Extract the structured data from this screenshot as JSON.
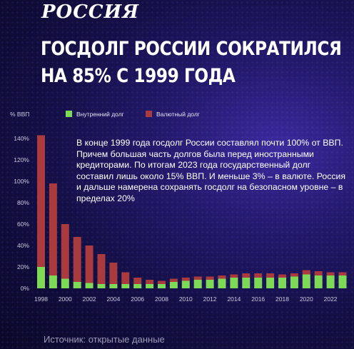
{
  "brand": {
    "logo_text": "РОССИЯ"
  },
  "headline": {
    "line1": "ГОСДОЛГ РОССИИ СОКРАТИЛСЯ",
    "line2": "НА 85% С 1999 ГОДА"
  },
  "note": "В конце 1999 года госдолг России составлял почти 100% от ВВП. Причем большая часть долгов была перед иностранными кредиторами. По итогам 2023 года государственный долг составил лишь около 15% ВВП. И меньше 3% – в валюте. Россия и дальше намерена сохранять госдолг на безопасном уровне – в пределах 20%",
  "source": "Источник: открытые данные",
  "colors": {
    "domestic": "#7ed957",
    "foreign": "#a93a3e",
    "axis_text": "#c9c7e0"
  },
  "chart_data": {
    "type": "bar",
    "stacked": true,
    "ylabel": "% ВВП",
    "ylim": [
      0,
      140
    ],
    "yticks": [
      0,
      20,
      40,
      60,
      80,
      100,
      120,
      140
    ],
    "ytick_labels": [
      "0%",
      "20%",
      "40%",
      "60%",
      "80%",
      "100%",
      "120%",
      "140%"
    ],
    "categories": [
      "1998",
      "1999",
      "2000",
      "2001",
      "2002",
      "2003",
      "2004",
      "2005",
      "2006",
      "2007",
      "2008",
      "2009",
      "2010",
      "2011",
      "2012",
      "2013",
      "2014",
      "2015",
      "2016",
      "2017",
      "2018",
      "2019",
      "2020",
      "2021",
      "2022",
      "2023"
    ],
    "xtick_labels": [
      "1998",
      "2000",
      "2002",
      "2004",
      "2006",
      "2008",
      "2010",
      "2012",
      "2014",
      "2016",
      "2018",
      "2020",
      "2022"
    ],
    "series": [
      {
        "name": "Внутренний долг",
        "values": [
          20,
          12,
          9,
          6,
          5,
          4,
          4,
          4,
          4,
          4,
          4,
          6,
          7,
          8,
          8,
          9,
          10,
          10,
          10,
          10,
          10,
          11,
          13,
          12,
          12,
          12
        ]
      },
      {
        "name": "Валютный долг",
        "values": [
          123,
          86,
          51,
          42,
          35,
          28,
          20,
          11,
          6,
          4,
          3,
          3,
          3,
          3,
          3,
          3,
          3,
          4,
          4,
          4,
          3,
          3,
          4,
          4,
          3,
          3
        ]
      }
    ],
    "legend_position": "top"
  }
}
